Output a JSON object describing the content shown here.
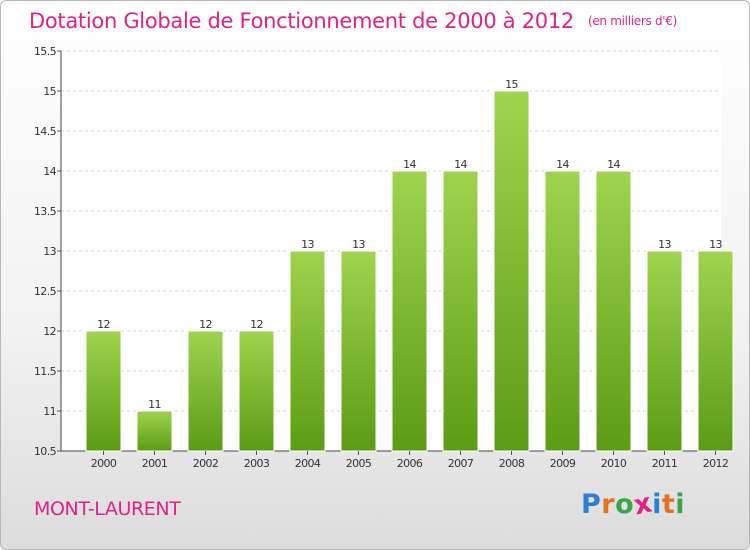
{
  "chart_title": "Dotation Globale de Fonctionnement de 2000 à 2012",
  "unit_label": "(en milliers d'€)",
  "municipality": "MONT-LAURENT",
  "logo": {
    "letters": [
      "P",
      "r",
      "o",
      "x",
      "i",
      "t",
      "i"
    ],
    "colors": [
      "#2f7fd0",
      "#e2731c",
      "#3aa64a",
      "#e0218a",
      "#2f7fd0",
      "#e2731c",
      "#3aa64a"
    ]
  },
  "colors": {
    "bar_top": "#9fd44e",
    "bar_bottom": "#5b9c14",
    "accent": "#e0218a",
    "grid": "#d4d4d4"
  },
  "chart_data": {
    "type": "bar",
    "title": "Dotation Globale de Fonctionnement de 2000 à 2012",
    "xlabel": "",
    "ylabel": "",
    "categories": [
      "2000",
      "2001",
      "2002",
      "2003",
      "2004",
      "2005",
      "2006",
      "2007",
      "2008",
      "2009",
      "2010",
      "2011",
      "2012"
    ],
    "values": [
      12,
      11,
      12,
      12,
      13,
      13,
      14,
      14,
      15,
      14,
      14,
      13,
      13
    ],
    "ylim": [
      10.5,
      15.5
    ],
    "yticks": [
      "10.5",
      "11",
      "11.5",
      "12",
      "12.5",
      "13",
      "13.5",
      "14",
      "14.5",
      "15",
      "15.5"
    ],
    "grid": true
  }
}
